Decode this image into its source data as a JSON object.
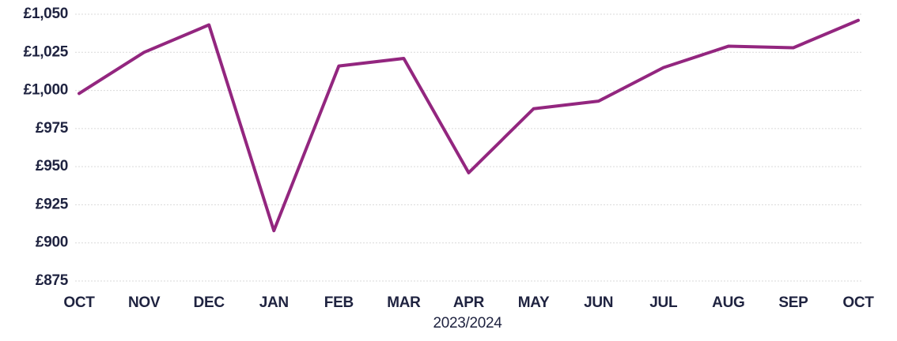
{
  "chart_data": {
    "type": "line",
    "x_label": "2023/2024",
    "categories": [
      "OCT",
      "NOV",
      "DEC",
      "JAN",
      "FEB",
      "MAR",
      "APR",
      "MAY",
      "JUN",
      "JUL",
      "AUG",
      "SEP",
      "OCT"
    ],
    "values": [
      998,
      1025,
      1043,
      908,
      1016,
      1021,
      946,
      988,
      993,
      1015,
      1029,
      1028,
      1046
    ],
    "color": "#93267f",
    "ylim": [
      875,
      1050
    ],
    "yticks": [
      {
        "value": 875,
        "label": "£875"
      },
      {
        "value": 900,
        "label": "£900"
      },
      {
        "value": 925,
        "label": "£925"
      },
      {
        "value": 950,
        "label": "£950"
      },
      {
        "value": 975,
        "label": "£975"
      },
      {
        "value": 1000,
        "label": "£1,000"
      },
      {
        "value": 1025,
        "label": "£1,025"
      },
      {
        "value": 1050,
        "label": "£1,050"
      }
    ],
    "grid": true
  }
}
